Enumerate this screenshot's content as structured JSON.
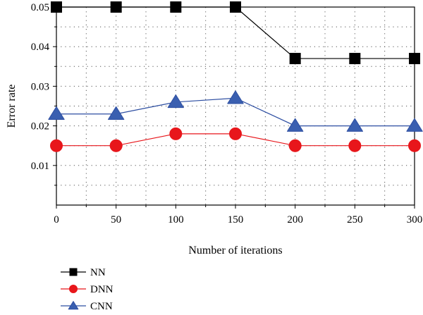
{
  "chart_data": {
    "type": "line",
    "title": "",
    "xlabel": "Number of iterations",
    "ylabel": "Error rate",
    "x": [
      0,
      50,
      100,
      150,
      200,
      250,
      300
    ],
    "xlim": [
      0,
      300
    ],
    "ylim": [
      0,
      0.05
    ],
    "x_ticks": [
      "0",
      "50",
      "100",
      "150",
      "200",
      "250",
      "300"
    ],
    "y_ticks": [
      "0.01",
      "0.02",
      "0.03",
      "0.04",
      "0.05"
    ],
    "grid": true,
    "legend_position": "bottom-left",
    "series": [
      {
        "name": "NN",
        "marker": "square",
        "color": "#000000",
        "fill": "#000000",
        "values": [
          0.05,
          0.05,
          0.05,
          0.05,
          0.037,
          0.037,
          0.037
        ]
      },
      {
        "name": "DNN",
        "marker": "circle",
        "color": "#e8161b",
        "fill": "#e8161b",
        "values": [
          0.015,
          0.015,
          0.018,
          0.018,
          0.015,
          0.015,
          0.015
        ]
      },
      {
        "name": "CNN",
        "marker": "triangle",
        "color": "#2e4fa2",
        "fill": "#3a5fb0",
        "values": [
          0.023,
          0.023,
          0.026,
          0.027,
          0.02,
          0.02,
          0.02
        ]
      }
    ]
  }
}
